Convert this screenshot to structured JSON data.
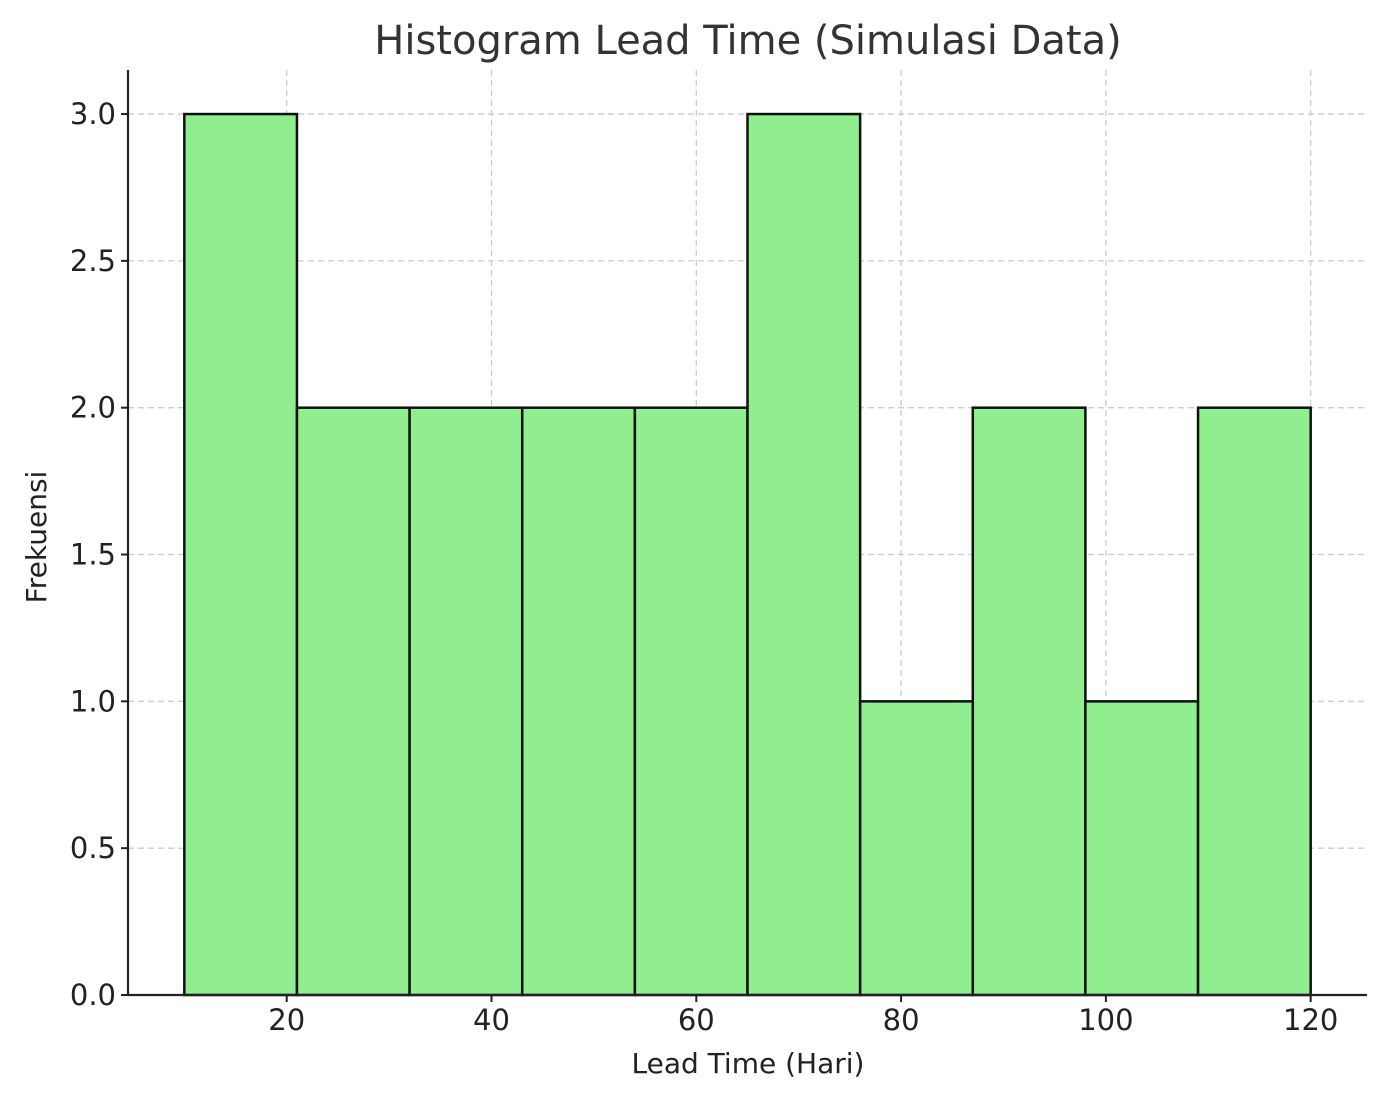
{
  "chart_data": {
    "type": "bar",
    "title": "Histogram Lead Time (Simulasi Data)",
    "xlabel": "Lead Time (Hari)",
    "ylabel": "Frekuensi",
    "bin_edges": [
      10,
      21,
      32,
      43,
      54,
      65,
      76,
      87,
      98,
      109,
      120
    ],
    "values": [
      3,
      2,
      2,
      2,
      2,
      3,
      1,
      2,
      1,
      2
    ],
    "xlim": [
      4.5,
      125.5
    ],
    "ylim": [
      0,
      3.15
    ],
    "xticks": [
      20,
      40,
      60,
      80,
      100,
      120
    ],
    "yticks": [
      0.0,
      0.5,
      1.0,
      1.5,
      2.0,
      2.5,
      3.0
    ],
    "ytick_labels": [
      "0.0",
      "0.5",
      "1.0",
      "1.5",
      "2.0",
      "2.5",
      "3.0"
    ],
    "grid": true,
    "bar_color": "#90ee90",
    "edge_color": "#111111"
  }
}
